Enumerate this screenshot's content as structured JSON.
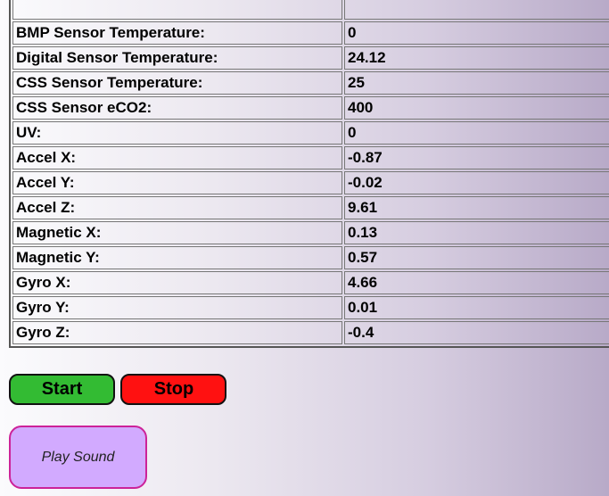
{
  "sensor_table": {
    "rows": [
      {
        "label": "",
        "value": ""
      },
      {
        "label": "BMP Sensor Temperature:",
        "value": "0"
      },
      {
        "label": "Digital Sensor Temperature:",
        "value": "24.12"
      },
      {
        "label": "CSS Sensor Temperature:",
        "value": "25"
      },
      {
        "label": "CSS Sensor eCO2:",
        "value": "400"
      },
      {
        "label": "UV:",
        "value": "0"
      },
      {
        "label": "Accel X:",
        "value": "-0.87"
      },
      {
        "label": "Accel Y:",
        "value": "-0.02"
      },
      {
        "label": "Accel Z:",
        "value": "9.61"
      },
      {
        "label": "Magnetic X:",
        "value": "0.13"
      },
      {
        "label": "Magnetic Y:",
        "value": "0.57"
      },
      {
        "label": "Gyro X:",
        "value": "4.66"
      },
      {
        "label": "Gyro Y:",
        "value": "0.01"
      },
      {
        "label": "Gyro Z:",
        "value": "-0.4"
      }
    ]
  },
  "controls": {
    "start_label": "Start",
    "stop_label": "Stop",
    "play_sound_label": "Play Sound",
    "start_color": "#33bb33",
    "stop_color": "#ff1111",
    "sound_color": "#d2aaff"
  }
}
